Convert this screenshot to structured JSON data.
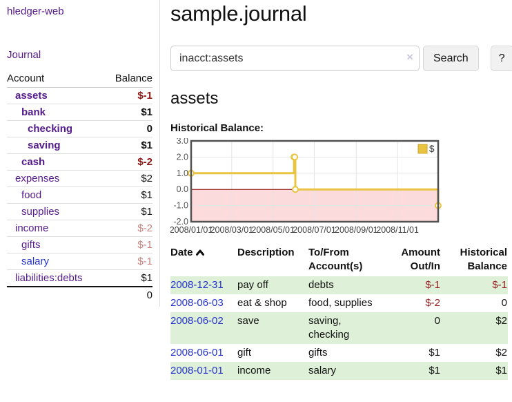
{
  "colors": {
    "link_visited": "#551a8b",
    "link_unvisited": "#2433cc",
    "negative_strong": "#8b1414",
    "negative_soft": "#c5827e",
    "table_negative": "#941f1f",
    "row_stripe_green": "#dff0d8",
    "chart_series_yellow": "#e9c440"
  },
  "sidebar": {
    "app_title": "hledger-web",
    "nav": {
      "journal_label": "Journal"
    },
    "accounts_table": {
      "headers": {
        "account": "Account",
        "balance": "Balance"
      },
      "rows": [
        {
          "name": "assets",
          "balance": "$-1",
          "level": 1,
          "bold": true,
          "link_style": "visited",
          "balance_style": "neg-strong"
        },
        {
          "name": "bank",
          "balance": "$1",
          "level": 2,
          "bold": true,
          "link_style": "visited",
          "balance_style": "normal"
        },
        {
          "name": "checking",
          "balance": "0",
          "level": 3,
          "bold": true,
          "link_style": "visited",
          "balance_style": "normal"
        },
        {
          "name": "saving",
          "balance": "$1",
          "level": 3,
          "bold": true,
          "link_style": "visited",
          "balance_style": "normal"
        },
        {
          "name": "cash",
          "balance": "$-2",
          "level": 2,
          "bold": true,
          "link_style": "visited",
          "balance_style": "neg-strong"
        },
        {
          "name": "expenses",
          "balance": "$2",
          "level": 1,
          "bold": false,
          "link_style": "visited",
          "balance_style": "normal"
        },
        {
          "name": "food",
          "balance": "$1",
          "level": 2,
          "bold": false,
          "link_style": "visited",
          "balance_style": "normal"
        },
        {
          "name": "supplies",
          "balance": "$1",
          "level": 2,
          "bold": false,
          "link_style": "visited",
          "balance_style": "normal"
        },
        {
          "name": "income",
          "balance": "$-2",
          "level": 1,
          "bold": false,
          "link_style": "visited",
          "balance_style": "neg-soft"
        },
        {
          "name": "gifts",
          "balance": "$-1",
          "level": 2,
          "bold": false,
          "link_style": "visited",
          "balance_style": "neg-soft"
        },
        {
          "name": "salary",
          "balance": "$-1",
          "level": 2,
          "bold": false,
          "link_style": "unvisited",
          "balance_style": "neg-soft"
        },
        {
          "name": "liabilities:debts",
          "balance": "$1",
          "level": 1,
          "bold": false,
          "link_style": "visited",
          "balance_style": "normal"
        }
      ],
      "total": "0"
    }
  },
  "main": {
    "title": "sample.journal",
    "search": {
      "value": "inacct:assets",
      "clear_icon": "×",
      "button_label": "Search",
      "help_label": "?"
    },
    "account_heading": "assets",
    "chart_label": "Historical Balance:"
  },
  "chart_data": {
    "type": "line",
    "style": "step",
    "title": "Historical Balance",
    "series": [
      {
        "name": "$",
        "color": "#e9c440",
        "points": [
          [
            "2008-01-01",
            1
          ],
          [
            "2008-06-01",
            2
          ],
          [
            "2008-06-02",
            2
          ],
          [
            "2008-06-03",
            0
          ],
          [
            "2008-12-31",
            -1
          ]
        ]
      }
    ],
    "x_ticks": [
      "2008/01/01",
      "2008/03/01",
      "2008/05/01",
      "2008/07/01",
      "2008/09/01",
      "2008/11/01"
    ],
    "y_ticks": [
      3.0,
      2.0,
      1.0,
      0.0,
      -1.0,
      -2.0
    ],
    "ylim": [
      -2,
      3
    ],
    "xlim": [
      "2008-01-01",
      "2008-12-31"
    ],
    "grid": true,
    "legend": {
      "label": "$",
      "position": "top-right"
    },
    "negative_region_color": "#fbdbdb",
    "zero_line_color": "#8b0000",
    "border_color": "#515151",
    "gridline_color": "#e4e4e4"
  },
  "register_table": {
    "headers": {
      "date": "Date",
      "description": "Description",
      "tofrom": "To/From Account(s)",
      "amount": "Amount Out/In",
      "historical": "Historical Balance"
    },
    "rows": [
      {
        "date": "2008-12-31",
        "description": "pay off",
        "accounts": "debts",
        "amount": "$-1",
        "balance": "$-1",
        "amount_negative": true,
        "balance_negative": true
      },
      {
        "date": "2008-06-03",
        "description": "eat & shop",
        "accounts": "food, supplies",
        "amount": "$-2",
        "balance": "0",
        "amount_negative": true,
        "balance_negative": false
      },
      {
        "date": "2008-06-02",
        "description": "save",
        "accounts": "saving, checking",
        "amount": "0",
        "balance": "$2",
        "amount_negative": false,
        "balance_negative": false
      },
      {
        "date": "2008-06-01",
        "description": "gift",
        "accounts": "gifts",
        "amount": "$1",
        "balance": "$2",
        "amount_negative": false,
        "balance_negative": false
      },
      {
        "date": "2008-01-01",
        "description": "income",
        "accounts": "salary",
        "amount": "$1",
        "balance": "$1",
        "amount_negative": false,
        "balance_negative": false
      }
    ]
  }
}
